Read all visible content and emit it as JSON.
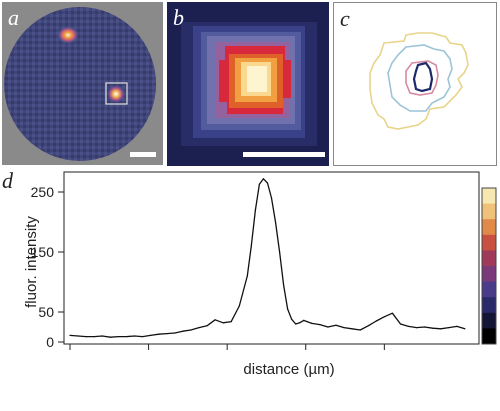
{
  "panels": {
    "a": {
      "letter": "a"
    },
    "b": {
      "letter": "b"
    },
    "c": {
      "letter": "c"
    },
    "d": {
      "letter": "d"
    }
  },
  "colors": {
    "cell_background": "#3b3f6a",
    "cell_body": "#4a4f78",
    "outside": "#8a8a8a",
    "hot_core": "#fff4d0",
    "hot_mid": "#f0a040",
    "hot_red": "#d8283c",
    "magenta": "#a03a8c",
    "purple": "#5a4a9a",
    "dark_blue": "#1a1e4a",
    "contour_yellow": "#e8d48a",
    "contour_blue": "#9cc4d8",
    "contour_pink": "#d88aa0",
    "contour_navy": "#1c2a6a",
    "line": "#111111"
  },
  "chart_data": {
    "type": "line",
    "xlabel": "distance (µm)",
    "ylabel": "fluor. intensity",
    "yticks": [
      0,
      50,
      150,
      250
    ],
    "ylim": [
      0,
      280
    ],
    "xlim": [
      0,
      100
    ],
    "x_tick_positions": [
      0,
      19.5,
      39,
      58.5,
      78
    ],
    "x": [
      0,
      2,
      4,
      6,
      8,
      10,
      12,
      14,
      16,
      18,
      20,
      22,
      24,
      26,
      28,
      30,
      32,
      34,
      36,
      38,
      40,
      42,
      44,
      45,
      46,
      47,
      48,
      49,
      50,
      51,
      52,
      53,
      54,
      55,
      56,
      57,
      58,
      60,
      62,
      64,
      66,
      68,
      70,
      72,
      74,
      76,
      78,
      80,
      82,
      84,
      86,
      88,
      90,
      92,
      94,
      96,
      98
    ],
    "y": [
      11,
      10,
      9,
      9,
      10,
      8,
      9,
      9,
      10,
      9,
      11,
      13,
      14,
      15,
      18,
      20,
      24,
      27,
      37,
      32,
      34,
      60,
      110,
      160,
      220,
      263,
      272,
      265,
      240,
      200,
      150,
      95,
      55,
      38,
      30,
      32,
      36,
      31,
      29,
      25,
      28,
      24,
      22,
      20,
      27,
      35,
      42,
      48,
      30,
      26,
      24,
      25,
      23,
      22,
      24,
      26,
      22
    ]
  },
  "colorbar": {
    "stops": [
      "#f7e7b0",
      "#efc17a",
      "#e08a4a",
      "#c85040",
      "#a03a5a",
      "#7a3a7a",
      "#4a3a8a",
      "#2a2a6a",
      "#151535",
      "#000000"
    ]
  }
}
